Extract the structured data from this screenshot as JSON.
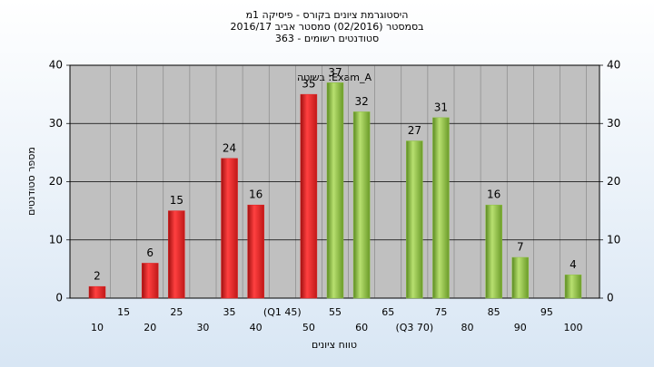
{
  "chart_data": {
    "type": "bar",
    "title": [
      "היסטוגרמת ציונים בקורס - פיסיקה 1מ",
      "בסמסטר (02/2016) סמסטר אביב 2016/17",
      "סטודנטים רשומים - 363"
    ],
    "annotation": "בשיטה :Exam_A",
    "x_label": "טווח ציונים",
    "y_label": "מספר סטודנטים",
    "categories": [
      "10",
      "15",
      "20",
      "25",
      "30",
      "35",
      "40",
      "(Q1 45)",
      "50",
      "55",
      "60",
      "65",
      "(Q3 70)",
      "75",
      "80",
      "85",
      "90",
      "95",
      "100"
    ],
    "series": [
      {
        "color": "#e02020",
        "values": [
          2,
          null,
          6,
          15,
          null,
          24,
          16,
          null,
          35,
          null,
          null,
          null,
          null,
          null,
          null,
          null,
          null,
          null,
          null
        ]
      },
      {
        "color": "#8cc040",
        "values": [
          null,
          null,
          null,
          null,
          null,
          null,
          null,
          null,
          null,
          37,
          32,
          null,
          27,
          31,
          null,
          16,
          7,
          null,
          4
        ]
      }
    ],
    "ylim": [
      0,
      40
    ],
    "yticks": [
      0,
      10,
      20,
      30,
      40
    ],
    "grid": true
  }
}
